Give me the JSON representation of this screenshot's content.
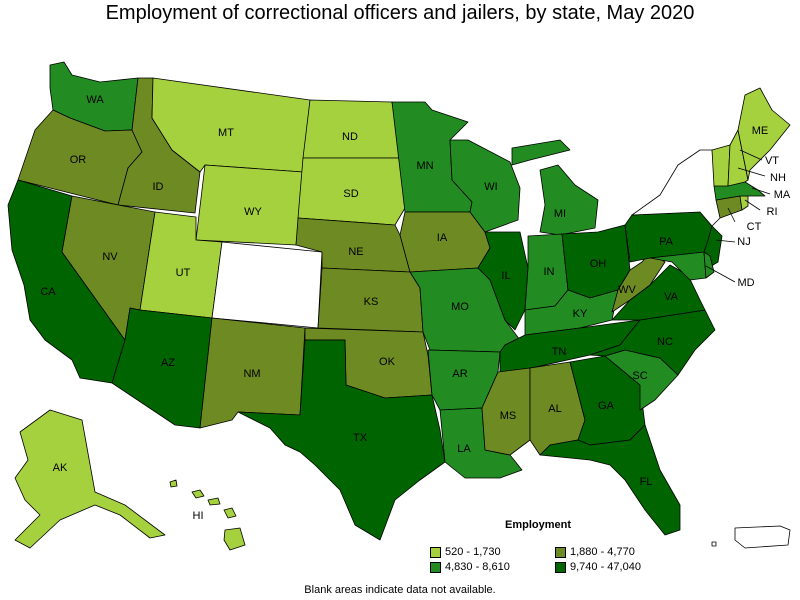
{
  "title": "Employment of correctional officers and jailers, by state, May 2020",
  "legend": {
    "title": "Employment",
    "bins": [
      {
        "label": "520 - 1,730",
        "color": "#a6d13f"
      },
      {
        "label": "1,880 - 4,770",
        "color": "#6e8b23"
      },
      {
        "label": "4,830 - 8,610",
        "color": "#228b22"
      },
      {
        "label": "9,740 - 47,040",
        "color": "#006400"
      }
    ]
  },
  "footnote": "Blank areas indicate data not available.",
  "no_data_color": "#ffffff",
  "states": [
    {
      "abbr": "WA",
      "bin": 2
    },
    {
      "abbr": "OR",
      "bin": 1
    },
    {
      "abbr": "CA",
      "bin": 3
    },
    {
      "abbr": "ID",
      "bin": 1
    },
    {
      "abbr": "NV",
      "bin": 1
    },
    {
      "abbr": "MT",
      "bin": 0
    },
    {
      "abbr": "WY",
      "bin": 0
    },
    {
      "abbr": "UT",
      "bin": 0
    },
    {
      "abbr": "AZ",
      "bin": 3
    },
    {
      "abbr": "CO",
      "bin": null
    },
    {
      "abbr": "NM",
      "bin": 1
    },
    {
      "abbr": "ND",
      "bin": 0
    },
    {
      "abbr": "SD",
      "bin": 0
    },
    {
      "abbr": "NE",
      "bin": 1
    },
    {
      "abbr": "KS",
      "bin": 1
    },
    {
      "abbr": "OK",
      "bin": 1
    },
    {
      "abbr": "TX",
      "bin": 3
    },
    {
      "abbr": "MN",
      "bin": 2
    },
    {
      "abbr": "IA",
      "bin": 1
    },
    {
      "abbr": "MO",
      "bin": 2
    },
    {
      "abbr": "AR",
      "bin": 2
    },
    {
      "abbr": "LA",
      "bin": 2
    },
    {
      "abbr": "WI",
      "bin": 2
    },
    {
      "abbr": "IL",
      "bin": 3
    },
    {
      "abbr": "MI",
      "bin": 2
    },
    {
      "abbr": "IN",
      "bin": 2
    },
    {
      "abbr": "OH",
      "bin": 3
    },
    {
      "abbr": "KY",
      "bin": 2
    },
    {
      "abbr": "TN",
      "bin": 3
    },
    {
      "abbr": "MS",
      "bin": 1
    },
    {
      "abbr": "AL",
      "bin": 1
    },
    {
      "abbr": "GA",
      "bin": 3
    },
    {
      "abbr": "FL",
      "bin": 3
    },
    {
      "abbr": "SC",
      "bin": 2
    },
    {
      "abbr": "NC",
      "bin": 3
    },
    {
      "abbr": "VA",
      "bin": 3
    },
    {
      "abbr": "WV",
      "bin": 1
    },
    {
      "abbr": "PA",
      "bin": 3
    },
    {
      "abbr": "NY",
      "bin": null
    },
    {
      "abbr": "NJ",
      "bin": 3
    },
    {
      "abbr": "MD",
      "bin": 2
    },
    {
      "abbr": "DE",
      "bin": 2
    },
    {
      "abbr": "CT",
      "bin": 1
    },
    {
      "abbr": "RI",
      "bin": 0
    },
    {
      "abbr": "MA",
      "bin": 2
    },
    {
      "abbr": "VT",
      "bin": 0
    },
    {
      "abbr": "NH",
      "bin": 0
    },
    {
      "abbr": "ME",
      "bin": 0
    },
    {
      "abbr": "AK",
      "bin": 0
    },
    {
      "abbr": "HI",
      "bin": 0
    },
    {
      "abbr": "PR",
      "bin": null
    }
  ]
}
